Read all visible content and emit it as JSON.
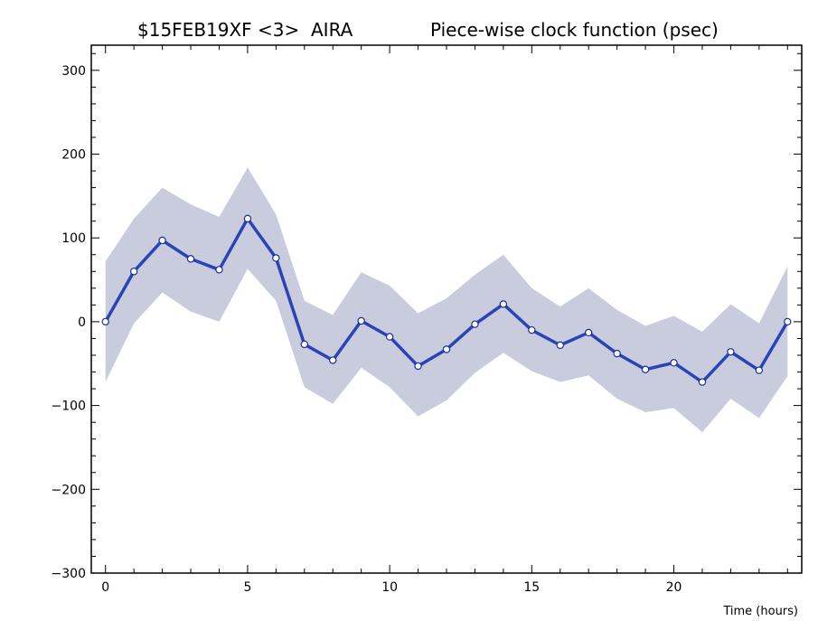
{
  "chart_data": {
    "type": "line",
    "title_left": "$15FEB19XF <3>  AIRA",
    "title_right": "Piece-wise clock function (psec)",
    "xlabel": "Time (hours)",
    "ylabel": "",
    "xlim": [
      -0.5,
      24.5
    ],
    "ylim": [
      -300,
      330
    ],
    "xticks": [
      0,
      5,
      10,
      15,
      20
    ],
    "yticks": [
      -300,
      -200,
      -100,
      0,
      100,
      200,
      300
    ],
    "grid": false,
    "colors": {
      "line": "#2a44b8",
      "band": "#c8ccdc",
      "marker_fill": "#ffffff"
    },
    "series": [
      {
        "x": [
          0,
          1,
          2,
          3,
          4,
          5,
          6,
          7,
          8,
          9,
          10,
          11,
          12,
          13,
          14,
          15,
          16,
          17,
          18,
          19,
          20,
          21,
          22,
          23,
          24
        ],
        "values": [
          0,
          60,
          97,
          75,
          62,
          123,
          76,
          -27,
          -46,
          1,
          -18,
          -53,
          -33,
          -3,
          21,
          -10,
          -28,
          -13,
          -38,
          -57,
          -49,
          -72,
          -36,
          -58,
          0
        ],
        "upper": [
          72,
          123,
          160,
          140,
          125,
          184,
          128,
          25,
          8,
          59,
          43,
          10,
          28,
          56,
          80,
          40,
          18,
          40,
          14,
          -5,
          7,
          -12,
          21,
          -2,
          66
        ],
        "lower": [
          -72,
          -2,
          35,
          12,
          0,
          63,
          25,
          -78,
          -98,
          -55,
          -78,
          -113,
          -94,
          -61,
          -37,
          -59,
          -72,
          -64,
          -92,
          -108,
          -103,
          -132,
          -92,
          -115,
          -65
        ]
      }
    ]
  }
}
